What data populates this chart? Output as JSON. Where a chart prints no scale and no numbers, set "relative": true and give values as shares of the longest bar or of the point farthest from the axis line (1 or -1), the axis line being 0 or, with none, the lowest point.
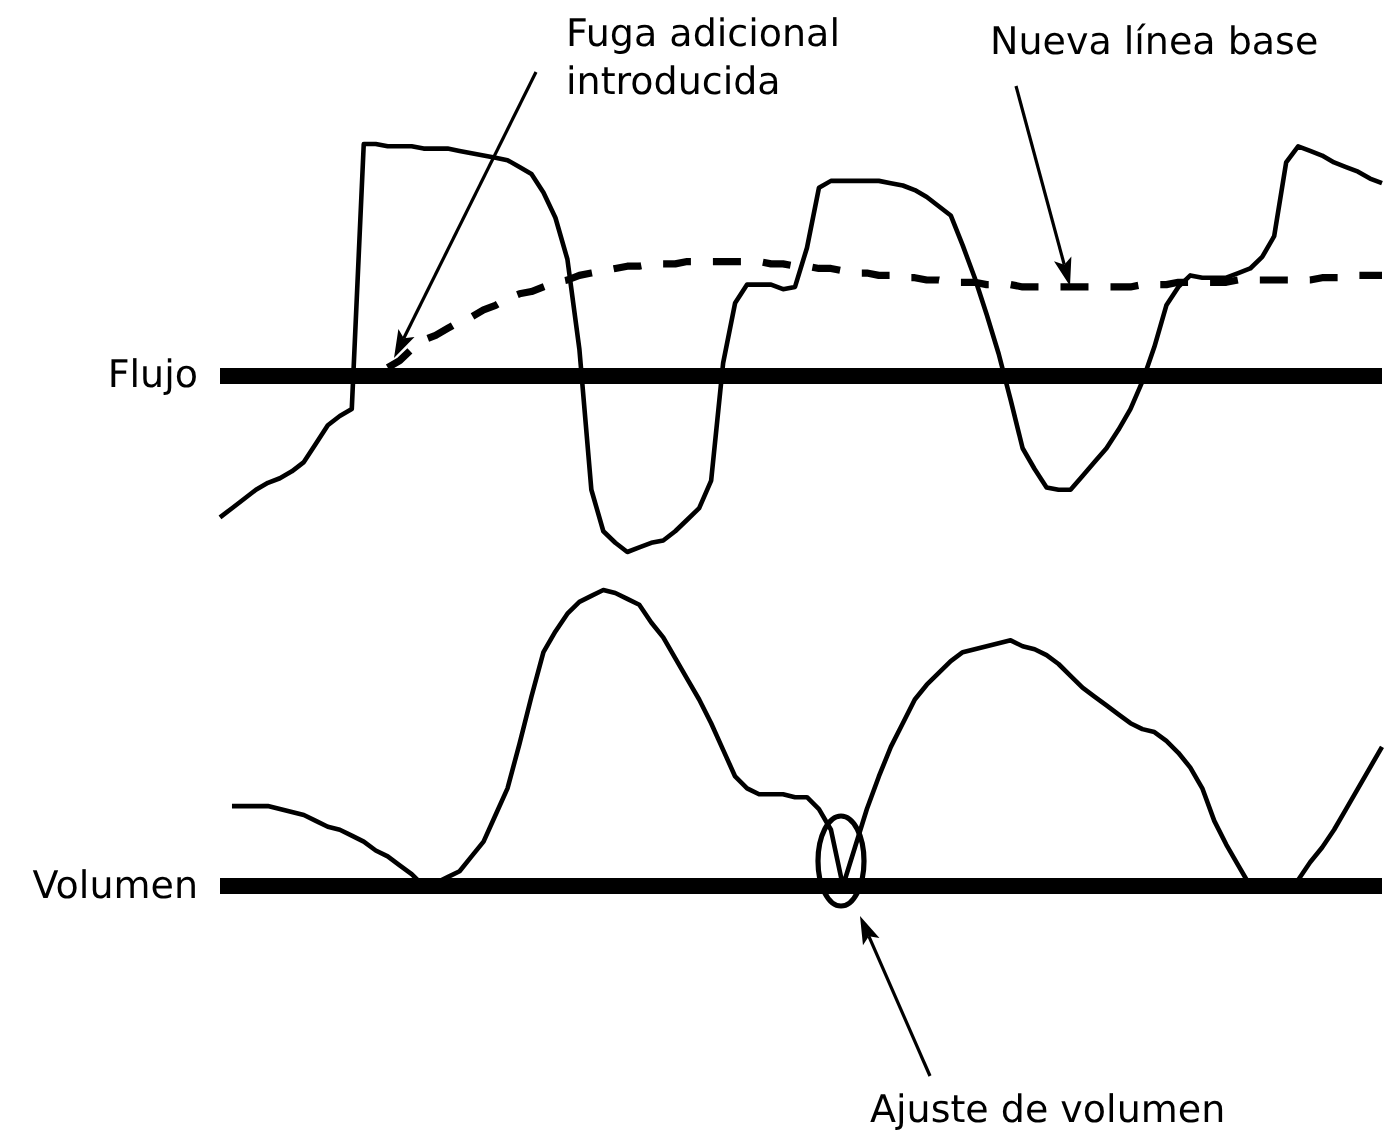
{
  "chart_data": [
    {
      "type": "line",
      "relative": true,
      "ylabel": "Flujo",
      "marker": "none",
      "annotations": [
        "Fuga adicional\nintroducida",
        "Nueva línea base"
      ],
      "categories": [
        null,
        null,
        null,
        null,
        null,
        null,
        null,
        null,
        null,
        null,
        null,
        null,
        null,
        null,
        null,
        null,
        null,
        null,
        null,
        null,
        null,
        null,
        null,
        null,
        null,
        null,
        null,
        null,
        null,
        null,
        null,
        null,
        null,
        null,
        null,
        null,
        null,
        null,
        null,
        null,
        null,
        null,
        null,
        null,
        null,
        null,
        null,
        null,
        null,
        null,
        null,
        null,
        null,
        null,
        null,
        null,
        null,
        null,
        null,
        null,
        null,
        null,
        null,
        null,
        null,
        null,
        null,
        null,
        null,
        null,
        null,
        null,
        null,
        null,
        null,
        null,
        null,
        null,
        null,
        null,
        null,
        null,
        null,
        null,
        null,
        null,
        null,
        null,
        null,
        null,
        null,
        null,
        null,
        null,
        null,
        null,
        null,
        null
      ],
      "series": [
        {
          "color": "#000000",
          "line_style": "solid",
          "values": [
            -0.62,
            -0.58,
            -0.54,
            -0.5,
            -0.47,
            -0.45,
            -0.42,
            -0.38,
            -0.3,
            -0.22,
            -0.18,
            -0.15,
            1,
            1,
            0.99,
            0.99,
            0.99,
            0.98,
            0.98,
            0.98,
            0.97,
            0.96,
            0.95,
            0.94,
            0.93,
            0.9,
            0.87,
            0.79,
            0.68,
            0.5,
            0.11,
            -0.5,
            -0.68,
            -0.73,
            -0.77,
            -0.75,
            -0.73,
            -0.72,
            -0.68,
            -0.63,
            -0.58,
            -0.46,
            0.05,
            0.31,
            0.39,
            0.39,
            0.39,
            0.37,
            0.38,
            0.55,
            0.81,
            0.84,
            0.84,
            0.84,
            0.84,
            0.84,
            0.83,
            0.82,
            0.8,
            0.77,
            0.73,
            0.69,
            0.56,
            0.42,
            0.26,
            0.09,
            -0.11,
            -0.32,
            -0.41,
            -0.49,
            -0.5,
            -0.5,
            -0.44,
            -0.38,
            -0.32,
            -0.24,
            -0.15,
            -0.03,
            0.12,
            0.3,
            0.38,
            0.43,
            0.42,
            0.42,
            0.42,
            0.44,
            0.46,
            0.51,
            0.6,
            0.92,
            0.99,
            0.97,
            0.95,
            0.92,
            0.9,
            0.88,
            0.85,
            0.83
          ]
        },
        {
          "color": "#000000",
          "line_style": "dashed",
          "values": [
            null,
            null,
            null,
            null,
            null,
            null,
            null,
            null,
            null,
            null,
            null,
            null,
            null,
            null,
            0.03,
            0.06,
            0.11,
            0.15,
            0.17,
            0.2,
            0.23,
            0.25,
            0.28,
            0.3,
            0.33,
            0.35,
            0.36,
            0.38,
            0.4,
            0.41,
            0.43,
            0.44,
            0.45,
            0.46,
            0.47,
            0.47,
            0.48,
            0.48,
            0.48,
            0.49,
            0.49,
            0.49,
            0.49,
            0.49,
            0.49,
            0.49,
            0.48,
            0.48,
            0.47,
            0.47,
            0.46,
            0.46,
            0.45,
            0.44,
            0.44,
            0.43,
            0.43,
            0.42,
            0.42,
            0.41,
            0.41,
            0.4,
            0.4,
            0.4,
            0.39,
            0.39,
            0.39,
            0.38,
            0.38,
            0.38,
            0.38,
            0.38,
            0.38,
            0.38,
            0.38,
            0.38,
            0.38,
            0.39,
            0.39,
            0.39,
            0.4,
            0.4,
            0.4,
            0.4,
            0.4,
            0.41,
            0.41,
            0.41,
            0.41,
            0.41,
            0.41,
            0.41,
            0.42,
            0.42,
            0.42,
            0.43,
            0.43,
            0.43
          ]
        }
      ]
    },
    {
      "type": "line",
      "relative": true,
      "ylabel": "Volumen",
      "marker": "none",
      "annotations": [
        "Ajuste de volumen"
      ],
      "categories": [
        null,
        null,
        null,
        null,
        null,
        null,
        null,
        null,
        null,
        null,
        null,
        null,
        null,
        null,
        null,
        null,
        null,
        null,
        null,
        null,
        null,
        null,
        null,
        null,
        null,
        null,
        null,
        null,
        null,
        null,
        null,
        null,
        null,
        null,
        null,
        null,
        null,
        null,
        null,
        null,
        null,
        null,
        null,
        null,
        null,
        null,
        null,
        null,
        null,
        null,
        null,
        null,
        null,
        null,
        null,
        null,
        null,
        null,
        null,
        null,
        null,
        null,
        null,
        null,
        null,
        null,
        null,
        null,
        null,
        null,
        null,
        null,
        null,
        null,
        null,
        null,
        null,
        null,
        null,
        null,
        null,
        null,
        null,
        null,
        null,
        null,
        null,
        null,
        null,
        null,
        null,
        null,
        null,
        null,
        null,
        null,
        null,
        null
      ],
      "series": [
        {
          "color": "#000000",
          "line_style": "solid",
          "values": [
            null,
            0.27,
            0.27,
            0.27,
            0.27,
            0.26,
            0.25,
            0.24,
            0.22,
            0.2,
            0.19,
            0.17,
            0.15,
            0.12,
            0.1,
            0.07,
            0.04,
            0,
            0.01,
            0.03,
            0.05,
            0.1,
            0.15,
            0.24,
            0.33,
            0.48,
            0.64,
            0.79,
            0.86,
            0.92,
            0.96,
            0.98,
            1,
            0.99,
            0.97,
            0.95,
            0.89,
            0.84,
            0.77,
            0.7,
            0.63,
            0.55,
            0.46,
            0.37,
            0.33,
            0.31,
            0.31,
            0.31,
            0.3,
            0.3,
            0.26,
            0.19,
            0,
            0.13,
            0.26,
            0.37,
            0.47,
            0.55,
            0.63,
            0.68,
            0.72,
            0.76,
            0.79,
            0.8,
            0.81,
            0.82,
            0.83,
            0.81,
            0.8,
            0.78,
            0.75,
            0.71,
            0.67,
            0.64,
            0.61,
            0.58,
            0.55,
            0.53,
            0.52,
            0.49,
            0.45,
            0.4,
            0.33,
            0.22,
            0.14,
            0.07,
            0,
            0,
            0,
            0,
            0.02,
            0.08,
            0.13,
            0.19,
            0.26,
            0.33,
            0.4,
            0.47
          ]
        }
      ]
    }
  ]
}
